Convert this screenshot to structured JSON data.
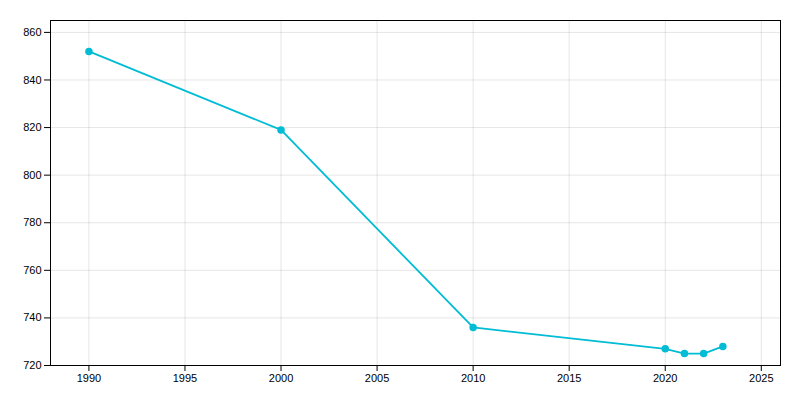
{
  "chart_data": {
    "type": "line",
    "x": [
      1990,
      2000,
      2010,
      2020,
      2021,
      2022,
      2023
    ],
    "values": [
      852,
      819,
      736,
      727,
      725,
      725,
      728
    ],
    "color": "#00BCD4",
    "marker": "circle",
    "xlim": [
      1988,
      2026
    ],
    "ylim": [
      720,
      865
    ],
    "xticks": [
      1990,
      1995,
      2000,
      2005,
      2010,
      2015,
      2020,
      2025
    ],
    "yticks": [
      720,
      740,
      760,
      780,
      800,
      820,
      840,
      860
    ],
    "grid": true
  }
}
